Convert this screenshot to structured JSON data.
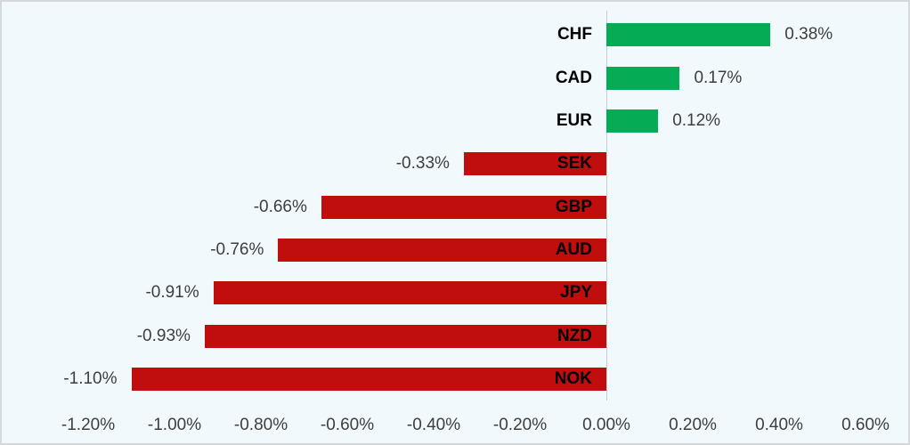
{
  "chart_data": {
    "type": "bar",
    "orientation": "horizontal",
    "title": "",
    "xlabel": "",
    "ylabel": "",
    "categories": [
      "CHF",
      "CAD",
      "EUR",
      "SEK",
      "GBP",
      "AUD",
      "JPY",
      "NZD",
      "NOK"
    ],
    "values": [
      0.38,
      0.17,
      0.12,
      -0.33,
      -0.66,
      -0.76,
      -0.91,
      -0.93,
      -1.1
    ],
    "value_labels": [
      "0.38%",
      "0.17%",
      "0.12%",
      "-0.33%",
      "-0.66%",
      "-0.76%",
      "-0.91%",
      "-0.93%",
      "-1.10%"
    ],
    "xlim": [
      -1.2,
      0.6
    ],
    "x_tick_values": [
      -1.2,
      -1.0,
      -0.8,
      -0.6,
      -0.4,
      -0.2,
      0.0,
      0.2,
      0.4,
      0.6
    ],
    "x_tick_labels": [
      "-1.20%",
      "-1.00%",
      "-0.80%",
      "-0.60%",
      "-0.40%",
      "-0.20%",
      "0.00%",
      "0.20%",
      "0.40%",
      "0.60%"
    ],
    "grid": "off",
    "legend": "none",
    "colors": {
      "positive_bar": "#05ab55",
      "negative_bar": "#c00d0d",
      "background": "#f1f9fc",
      "axis_line": "#c6cdd1",
      "value_text": "#3e3e3e",
      "category_text": "#000000",
      "tick_text": "#3e3e3e"
    }
  }
}
